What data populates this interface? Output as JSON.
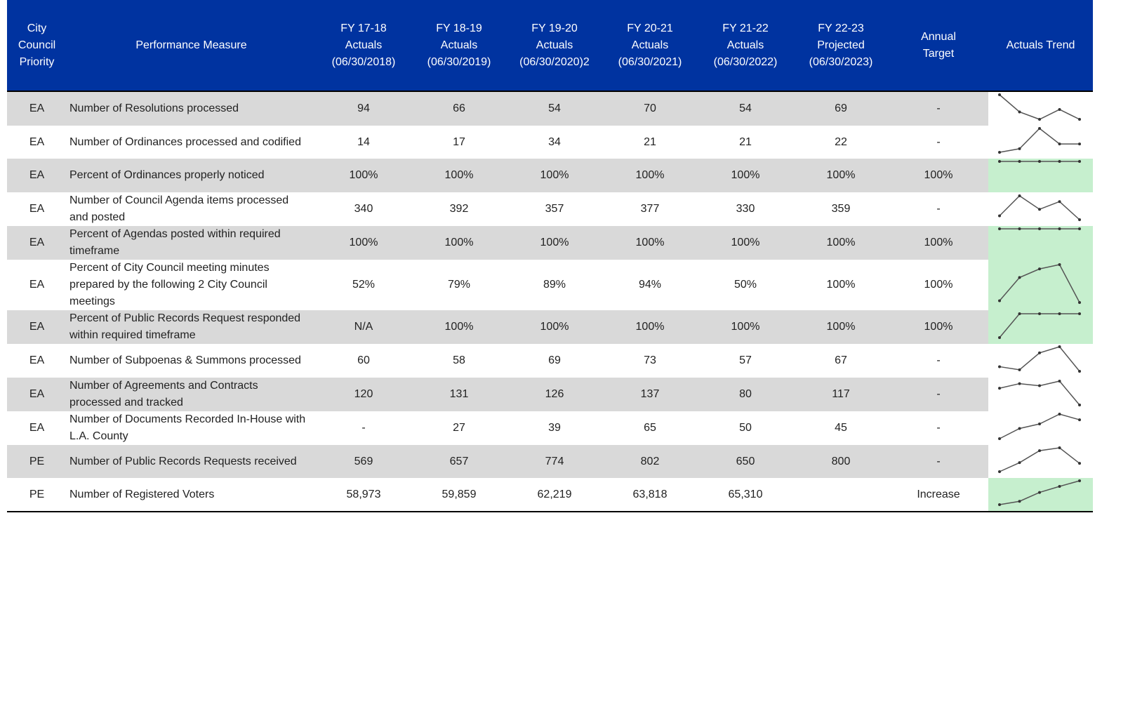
{
  "table": {
    "header": [
      "City\nCouncil\nPriority",
      "Performance Measure",
      "FY 17-18\nActuals\n(06/30/2018)",
      "FY 18-19\nActuals\n(06/30/2019)",
      "FY 19-20\nActuals\n(06/30/2020)2",
      "FY 20-21\nActuals\n(06/30/2021)",
      "FY 21-22\nActuals\n(06/30/2022)",
      "FY 22-23\nProjected\n(06/30/2023)",
      "Annual\nTarget",
      "Actuals Trend"
    ],
    "rows": [
      {
        "priority": "EA",
        "measure": "Number of Resolutions processed",
        "values": [
          94,
          66,
          54,
          70,
          54,
          69
        ],
        "target": "-"
      },
      {
        "priority": "EA",
        "measure": "Number of Ordinances processed and codified",
        "values": [
          14,
          17,
          34,
          21,
          21,
          22
        ],
        "target": "-"
      },
      {
        "priority": "EA",
        "measure": "Percent of Ordinances properly noticed",
        "values": [
          "100%",
          "100%",
          "100%",
          "100%",
          "100%",
          "100%"
        ],
        "target": "100%",
        "trend_fill": "#c6efce"
      },
      {
        "priority": "EA",
        "measure": "Number of Council Agenda items processed and posted",
        "values": [
          340,
          392,
          357,
          377,
          330,
          359
        ],
        "target": "-"
      },
      {
        "priority": "EA",
        "measure": "Percent of Agendas posted within required timeframe",
        "values": [
          "100%",
          "100%",
          "100%",
          "100%",
          "100%",
          "100%"
        ],
        "target": "100%",
        "trend_fill": "#c6efce"
      },
      {
        "priority": "EA",
        "measure": "Percent of City Council meeting minutes prepared by the following 2 City Council meetings",
        "values": [
          "52%",
          "79%",
          "89%",
          "94%",
          "50%",
          "100%"
        ],
        "target": "100%",
        "trend_fill": "#c6efce"
      },
      {
        "priority": "EA",
        "measure": "Percent of Public Records Request responded within required timeframe",
        "values": [
          "N/A",
          "100%",
          "100%",
          "100%",
          "100%",
          "100%"
        ],
        "target": "100%",
        "trend_fill": "#c6efce"
      },
      {
        "priority": "EA",
        "measure": "Number of Subpoenas & Summons processed",
        "values": [
          60,
          58,
          69,
          73,
          57,
          67
        ],
        "target": "-"
      },
      {
        "priority": "EA",
        "measure": "Number of Agreements and Contracts processed and tracked",
        "values": [
          120,
          131,
          126,
          137,
          80,
          117
        ],
        "target": "-"
      },
      {
        "priority": "EA",
        "measure": "Number of Documents Recorded In-House with L.A. County",
        "values": [
          "-",
          27,
          39,
          65,
          50,
          45
        ],
        "target": "-"
      },
      {
        "priority": "PE",
        "measure": "Number of Public Records Requests received",
        "values": [
          569,
          657,
          774,
          802,
          650,
          800
        ],
        "target": "-"
      },
      {
        "priority": "PE",
        "measure": "Number of Registered Voters",
        "values": [
          "58,973",
          "59,859",
          "62,219",
          "63,818",
          "65,310",
          null
        ],
        "target": "Increase",
        "trend_fill": "#c6efce"
      }
    ]
  }
}
